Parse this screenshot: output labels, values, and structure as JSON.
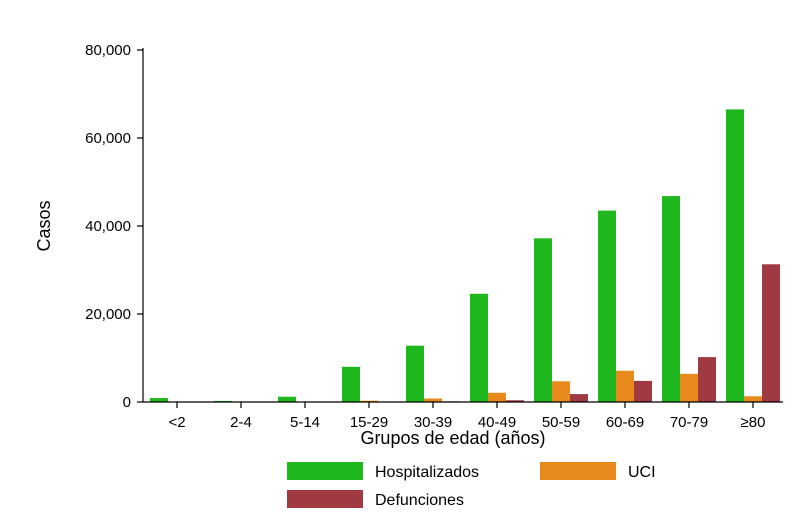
{
  "chart_data": {
    "type": "bar",
    "xlabel": "Grupos de edad (años)",
    "ylabel": "Casos",
    "ylim": [
      0,
      80000
    ],
    "yticks": [
      0,
      20000,
      40000,
      60000,
      80000
    ],
    "ytick_labels": [
      "0",
      "20,000",
      "40,000",
      "60,000",
      "80,000"
    ],
    "grid": false,
    "legend_position": "bottom",
    "categories": [
      "<2",
      "2-4",
      "5-14",
      "15-29",
      "30-39",
      "40-49",
      "50-59",
      "60-69",
      "70-79",
      "≥80"
    ],
    "series": [
      {
        "name": "Hospitalizados",
        "color": "#1fb81f",
        "values": [
          900,
          250,
          1200,
          8000,
          12800,
          24600,
          37200,
          43500,
          46800,
          66500
        ]
      },
      {
        "name": "UCI",
        "color": "#e8891c",
        "values": [
          30,
          20,
          60,
          300,
          800,
          2100,
          4700,
          7100,
          6400,
          1300
        ]
      },
      {
        "name": "Defunciones",
        "color": "#a03a42",
        "values": [
          20,
          10,
          30,
          50,
          150,
          400,
          1800,
          4800,
          10200,
          31300
        ]
      }
    ]
  }
}
